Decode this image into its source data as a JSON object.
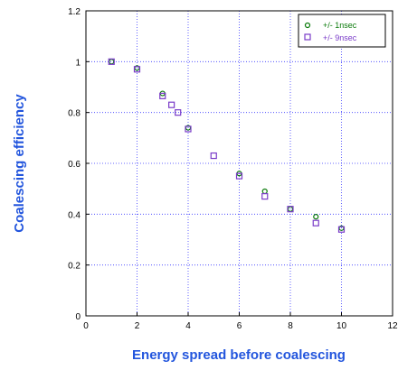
{
  "chart_data": {
    "type": "scatter",
    "title": "",
    "xlabel": "Energy spread before coalescing",
    "ylabel": "Coalescing efficiency",
    "xlim": [
      0,
      12
    ],
    "ylim": [
      0,
      1.2
    ],
    "x_ticks": [
      "0",
      "2",
      "4",
      "6",
      "8",
      "10",
      "12"
    ],
    "y_ticks": [
      "0",
      "0.2",
      "0.4",
      "0.6",
      "0.8",
      "1",
      "1.2"
    ],
    "grid": true,
    "legend_position": "top-right",
    "series": [
      {
        "name": "+/- 1nsec",
        "marker": "circle",
        "color": "#0a7a0a",
        "points": [
          [
            1,
            1.0
          ],
          [
            2,
            0.975
          ],
          [
            3,
            0.875
          ],
          [
            4,
            0.74
          ],
          [
            6,
            0.56
          ],
          [
            7,
            0.49
          ],
          [
            8,
            0.42
          ],
          [
            9,
            0.39
          ],
          [
            10,
            0.345
          ]
        ]
      },
      {
        "name": "+/- 9nsec",
        "marker": "square",
        "color": "#7a3cc8",
        "points": [
          [
            1,
            1.0
          ],
          [
            2,
            0.97
          ],
          [
            3,
            0.865
          ],
          [
            3.35,
            0.83
          ],
          [
            3.6,
            0.8
          ],
          [
            4,
            0.735
          ],
          [
            5,
            0.63
          ],
          [
            6,
            0.55
          ],
          [
            7,
            0.47
          ],
          [
            8,
            0.42
          ],
          [
            9,
            0.365
          ],
          [
            10,
            0.34
          ]
        ]
      }
    ]
  }
}
